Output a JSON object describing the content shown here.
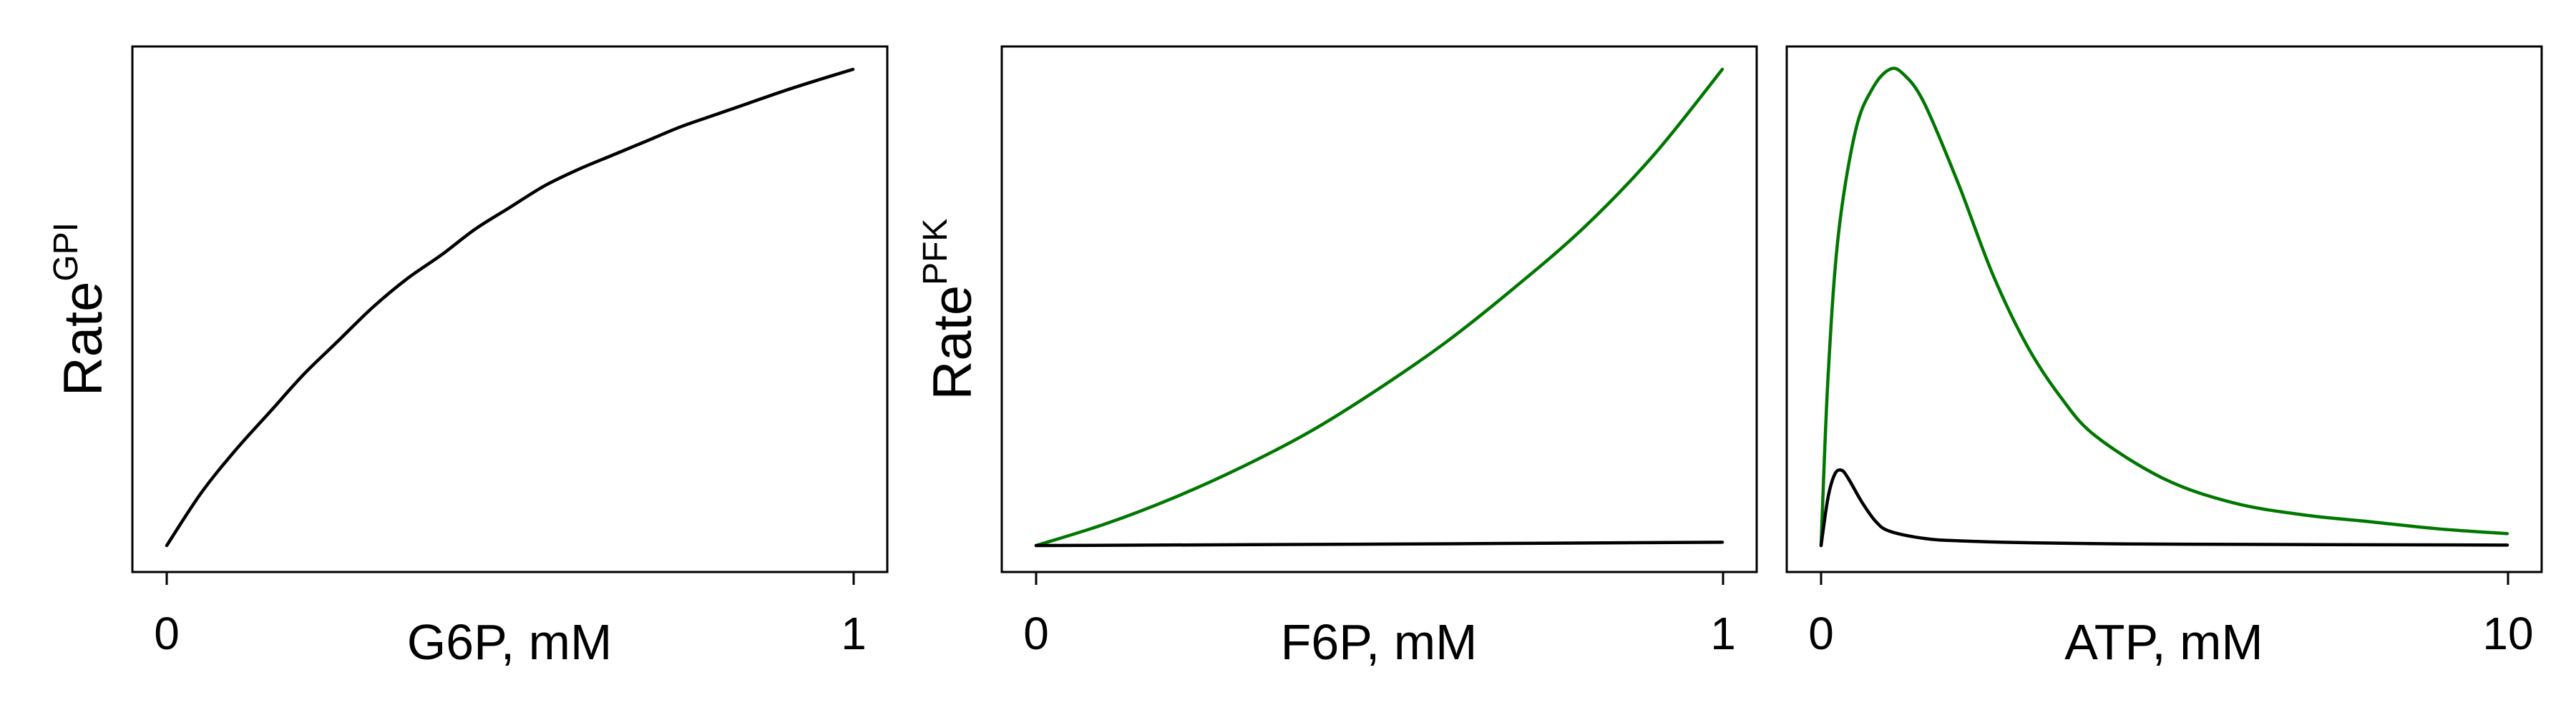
{
  "chart_data": [
    {
      "type": "line",
      "xlabel": "G6P, mM",
      "ylabel": {
        "main": "Rate",
        "sup": "GPI"
      },
      "xlim": [
        0,
        1
      ],
      "x_ticks": [
        "0",
        "1"
      ],
      "y_ticks_shown": false,
      "grid": false,
      "series": [
        {
          "color": "#000000",
          "x": [
            0,
            0.05,
            0.1,
            0.15,
            0.2,
            0.25,
            0.3,
            0.35,
            0.4,
            0.45,
            0.5,
            0.55,
            0.6,
            0.65,
            0.7,
            0.75,
            0.8,
            0.85,
            0.9,
            0.95,
            1.0
          ],
          "y": [
            0.0,
            0.11,
            0.2,
            0.28,
            0.36,
            0.43,
            0.5,
            0.56,
            0.61,
            0.665,
            0.71,
            0.755,
            0.79,
            0.82,
            0.85,
            0.88,
            0.905,
            0.93,
            0.955,
            0.978,
            1.0
          ]
        }
      ]
    },
    {
      "type": "line",
      "xlabel": "F6P, mM",
      "ylabel": {
        "main": "Rate",
        "sup": "PFK"
      },
      "xlim": [
        0,
        1
      ],
      "x_ticks": [
        "0",
        "1"
      ],
      "y_ticks_shown": false,
      "grid": false,
      "series": [
        {
          "color": "#007700",
          "x": [
            0,
            0.1,
            0.2,
            0.3,
            0.4,
            0.5,
            0.6,
            0.7,
            0.8,
            0.9,
            1.0
          ],
          "y": [
            0.0,
            0.045,
            0.1,
            0.165,
            0.24,
            0.33,
            0.43,
            0.545,
            0.67,
            0.82,
            1.0
          ]
        },
        {
          "color": "#000000",
          "x": [
            0,
            0.5,
            1.0
          ],
          "y": [
            0.0,
            0.003,
            0.007
          ]
        }
      ]
    },
    {
      "type": "line",
      "xlabel": "ATP, mM",
      "ylabel": {
        "main": "",
        "sup": ""
      },
      "xlim": [
        0,
        10
      ],
      "x_ticks": [
        "0",
        "10"
      ],
      "y_ticks_shown": false,
      "grid": false,
      "series": [
        {
          "color": "#007700",
          "x": [
            0,
            0.1,
            0.25,
            0.5,
            0.75,
            1.0,
            1.2,
            1.5,
            2.0,
            2.5,
            3.0,
            3.5,
            4.0,
            5.0,
            6.0,
            7.0,
            8.0,
            9.0,
            10.0
          ],
          "y": [
            0.0,
            0.35,
            0.65,
            0.87,
            0.96,
            1.0,
            0.99,
            0.93,
            0.76,
            0.57,
            0.42,
            0.31,
            0.23,
            0.14,
            0.09,
            0.065,
            0.05,
            0.035,
            0.025
          ]
        },
        {
          "color": "#000000",
          "x": [
            0,
            0.1,
            0.2,
            0.3,
            0.4,
            0.6,
            0.8,
            1.0,
            1.5,
            2.0,
            3.0,
            5.0,
            10.0
          ],
          "y": [
            0.0,
            0.1,
            0.15,
            0.158,
            0.14,
            0.09,
            0.05,
            0.03,
            0.015,
            0.01,
            0.006,
            0.003,
            0.001
          ]
        }
      ]
    }
  ]
}
